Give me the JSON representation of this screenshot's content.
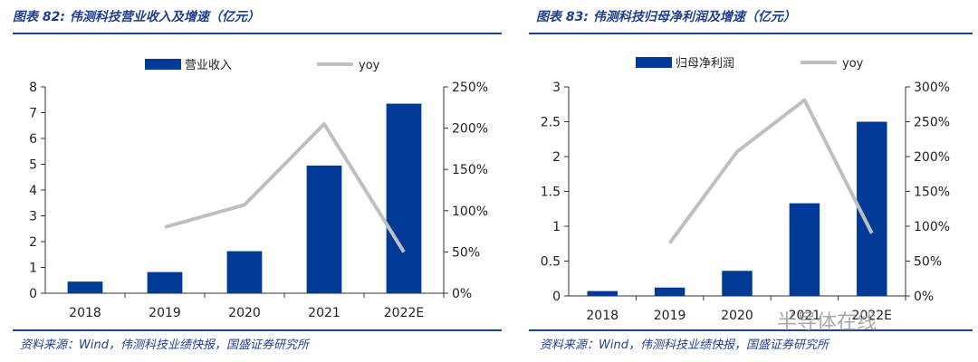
{
  "panels": [
    {
      "figure_title": "图表 82:  伟测科技营业收入及增速（亿元）",
      "source": "资料来源：Wind，伟测科技业绩快报，国盛证券研究所"
    },
    {
      "figure_title": "图表 83:  伟测科技归母净利润及增速（亿元）",
      "source": "资料来源：Wind，伟测科技业绩快报，国盛证券研究所"
    }
  ],
  "watermark": "半导体在线",
  "colors": {
    "bar": "#003a96",
    "line": "#bfbfbf",
    "accent": "#1f3f8f"
  },
  "chart_data": [
    {
      "type": "bar",
      "title": "伟测科技营业收入及增速（亿元）",
      "categories": [
        "2018",
        "2019",
        "2020",
        "2021",
        "2022E"
      ],
      "series": [
        {
          "name": "营业收入",
          "type": "bar",
          "axis": "left",
          "values": [
            0.45,
            0.82,
            1.63,
            4.95,
            7.35
          ]
        },
        {
          "name": "yoy",
          "type": "line",
          "axis": "right",
          "values": [
            null,
            0.8,
            1.07,
            2.05,
            0.5
          ]
        }
      ],
      "ylim": [
        0,
        8
      ],
      "yticks": [
        "0",
        "1",
        "2",
        "3",
        "4",
        "5",
        "6",
        "7",
        "8"
      ],
      "y2lim": [
        0,
        2.5
      ],
      "y2ticks": [
        "0%",
        "50%",
        "100%",
        "150%",
        "200%",
        "250%"
      ],
      "legend": "top"
    },
    {
      "type": "bar",
      "title": "伟测科技归母净利润及增速（亿元）",
      "categories": [
        "2018",
        "2019",
        "2020",
        "2021",
        "2022E"
      ],
      "series": [
        {
          "name": "归母净利润",
          "type": "bar",
          "axis": "left",
          "values": [
            0.07,
            0.12,
            0.36,
            1.33,
            2.5
          ]
        },
        {
          "name": "yoy",
          "type": "line",
          "axis": "right",
          "values": [
            null,
            0.76,
            2.07,
            2.81,
            0.9
          ]
        }
      ],
      "ylim": [
        0,
        3
      ],
      "yticks": [
        "0",
        "0.5",
        "1",
        "1.5",
        "2",
        "2.5",
        "3"
      ],
      "y2lim": [
        0,
        3
      ],
      "y2ticks": [
        "0%",
        "50%",
        "100%",
        "150%",
        "200%",
        "250%",
        "300%"
      ],
      "legend": "top"
    }
  ]
}
